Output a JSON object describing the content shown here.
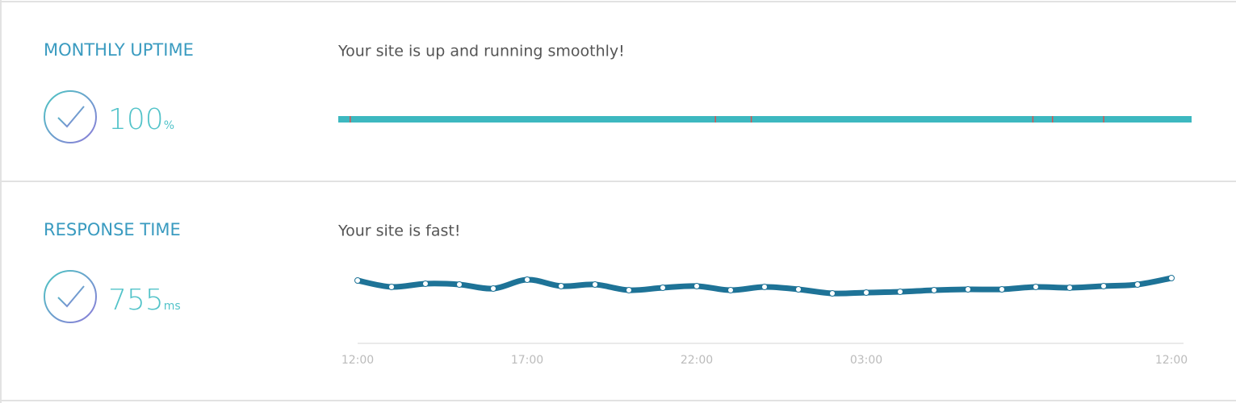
{
  "uptime": {
    "title": "MONTHLY UPTIME",
    "value": 100,
    "unit": "%",
    "message": "Your site is up and running smoothly!",
    "downtime_marks": [
      0.014,
      0.442,
      0.484,
      0.814,
      0.837,
      0.897
    ],
    "color": "#3db8c0",
    "mark_color": "#d9534f"
  },
  "response_time": {
    "title": "RESPONSE TIME",
    "value": 755,
    "unit": "ms",
    "message": "Your site is fast!",
    "chart_data": {
      "type": "line",
      "categories": [
        "12:00",
        null,
        null,
        null,
        null,
        "17:00",
        null,
        null,
        null,
        null,
        "22:00",
        null,
        null,
        null,
        null,
        "03:00",
        null,
        null,
        null,
        null,
        null,
        null,
        null,
        null,
        "12:00"
      ],
      "values": [
        780,
        700,
        740,
        730,
        680,
        790,
        710,
        730,
        660,
        690,
        710,
        660,
        700,
        670,
        620,
        630,
        640,
        660,
        670,
        670,
        700,
        690,
        710,
        730,
        810
      ],
      "ylim": [
        0,
        1000
      ],
      "color": "#1e7397"
    }
  }
}
